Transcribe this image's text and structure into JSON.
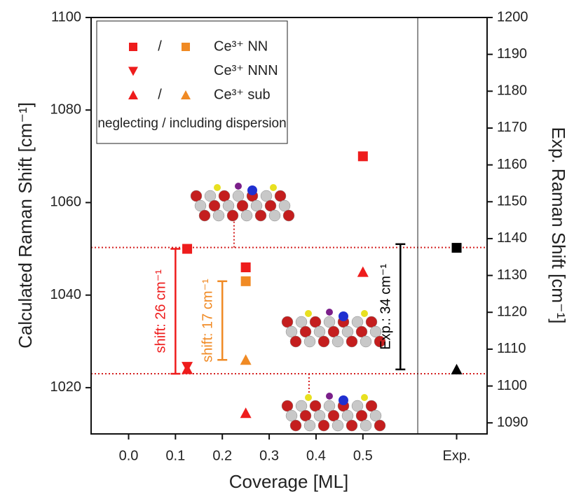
{
  "chart_data": {
    "type": "scatter",
    "x_label": "Coverage [ML]",
    "y_label": "Calculated Raman Shift [cm⁻¹]",
    "y2_label": "Exp. Raman Shift [cm⁻¹]",
    "xlim": [
      -0.08,
      0.765
    ],
    "xticks": [
      {
        "value": 0,
        "label": "0.0"
      },
      0.1,
      0.2,
      0.3,
      0.4,
      0.5,
      {
        "value": 0.7,
        "label": "Exp."
      }
    ],
    "ylim": [
      1010,
      1100
    ],
    "yticks": [
      1020,
      1040,
      1060,
      1080,
      1100
    ],
    "y2lim": [
      1087,
      1200
    ],
    "y2ticks": [
      1090,
      1100,
      1110,
      1120,
      1130,
      1140,
      1150,
      1160,
      1170,
      1180,
      1190,
      1200
    ],
    "separator_x": 0.617,
    "reference_lines": [
      1050.3,
      1023
    ],
    "legend_separator": "/",
    "legend_note": "neglecting / including dispersion",
    "series": [
      {
        "name": "Ce³⁺ NN",
        "marker": "square",
        "color": "#ee1c1c",
        "x": [
          0.125,
          0.25,
          0.5
        ],
        "values": [
          1050,
          1046,
          1070
        ]
      },
      {
        "name": "Ce³⁺ NN",
        "marker": "square",
        "color": "#f08a24",
        "x": [
          0.25
        ],
        "values": [
          1043
        ]
      },
      {
        "name": "Ce³⁺ NNN",
        "marker": "triangle-down",
        "color": "#ee1c1c",
        "x": [
          0.125
        ],
        "values": [
          1024.5
        ]
      },
      {
        "name": "Ce³⁺ sub",
        "marker": "triangle-up",
        "color": "#ee1c1c",
        "x": [
          0.125,
          0.25,
          0.5
        ],
        "values": [
          1024,
          1014.5,
          1045
        ]
      },
      {
        "name": "Ce³⁺ sub",
        "marker": "triangle-up",
        "color": "#f08a24",
        "x": [
          0.25
        ],
        "values": [
          1026
        ]
      },
      {
        "marker": "square",
        "color": "#000000",
        "axis": "y2",
        "x": [
          0.7
        ],
        "values": [
          1137.5
        ]
      },
      {
        "marker": "triangle-up",
        "color": "#000000",
        "axis": "y2",
        "x": [
          0.7
        ],
        "values": [
          1104.5
        ]
      }
    ],
    "annotations": [
      {
        "text": "shift: 26 cm⁻¹",
        "color": "#ee1c1c",
        "x": 0.1,
        "values": [
          1050,
          1023
        ]
      },
      {
        "text": "shift: 17 cm⁻¹",
        "color": "#f08a24",
        "x": 0.2,
        "values": [
          1043,
          1026
        ]
      },
      {
        "text": "Exp.: 34 cm⁻¹",
        "color": "#000000",
        "axis": "y2",
        "x": 0.58,
        "values": [
          1138.5,
          1104.5
        ]
      }
    ]
  }
}
